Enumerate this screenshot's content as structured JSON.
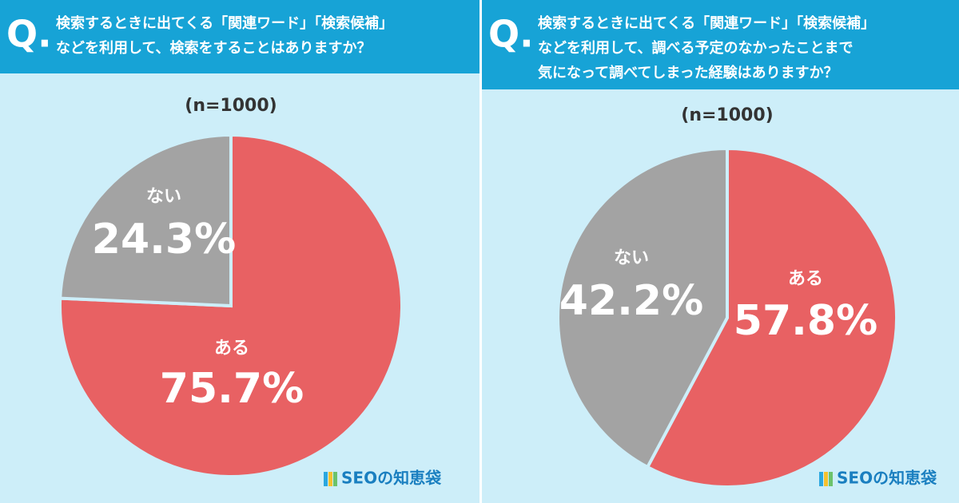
{
  "chart_data": [
    {
      "type": "pie",
      "q_mark": "Q.",
      "title": [
        "検索するときに出てくる「関連ワード」「検索候補」",
        "などを利用して、検索をすることはありますか？"
      ],
      "subtitle": "(n=1000)",
      "categories": [
        "ある",
        "ない"
      ],
      "values": [
        75.7,
        24.3
      ],
      "value_labels": [
        "75.7%",
        "24.3%"
      ],
      "colors": [
        "#e86163",
        "#a3a3a3"
      ],
      "source": "SEOの知恵袋"
    },
    {
      "type": "pie",
      "q_mark": "Q.",
      "title": [
        "検索するときに出てくる「関連ワード」「検索候補」",
        "などを利用して、調べる予定のなかったことまで",
        "気になって調べてしまった経験はありますか？"
      ],
      "subtitle": "(n=1000)",
      "categories": [
        "ある",
        "ない"
      ],
      "values": [
        57.8,
        42.2
      ],
      "value_labels": [
        "57.8%",
        "42.2%"
      ],
      "colors": [
        "#e86163",
        "#a3a3a3"
      ],
      "source": "SEOの知恵袋"
    }
  ]
}
